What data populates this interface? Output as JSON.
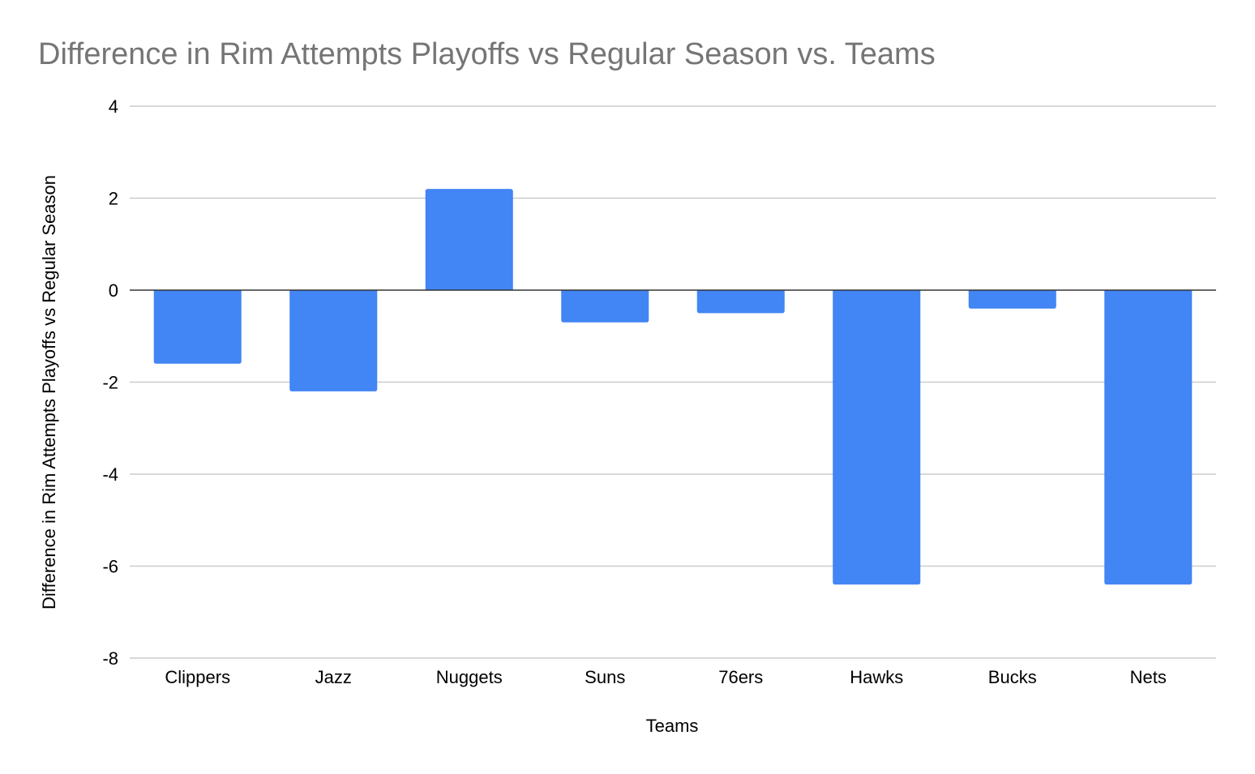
{
  "chart_data": {
    "type": "bar",
    "title": "Difference in Rim Attempts Playoffs vs Regular Season vs. Teams",
    "xlabel": "Teams",
    "ylabel": "Difference in Rim Attempts Playoffs vs Regular Season",
    "categories": [
      "Clippers",
      "Jazz",
      "Nuggets",
      "Suns",
      "76ers",
      "Hawks",
      "Bucks",
      "Nets"
    ],
    "series": [
      {
        "values": [
          -1.6,
          -2.2,
          2.2,
          -0.7,
          -0.5,
          -6.4,
          -0.4,
          -6.4
        ]
      }
    ],
    "ylim": [
      -8,
      4
    ],
    "yticks": [
      4,
      2,
      0,
      -2,
      -4,
      -6,
      -8
    ],
    "ytick_labels": [
      "4",
      "2",
      "0",
      "-2",
      "-4",
      "-6",
      "-8"
    ],
    "grid": true,
    "legend": "none",
    "colors": {
      "bar": "#4285f4",
      "title": "#757575",
      "grid": "#cccccc",
      "zero_line": "#333333"
    }
  }
}
